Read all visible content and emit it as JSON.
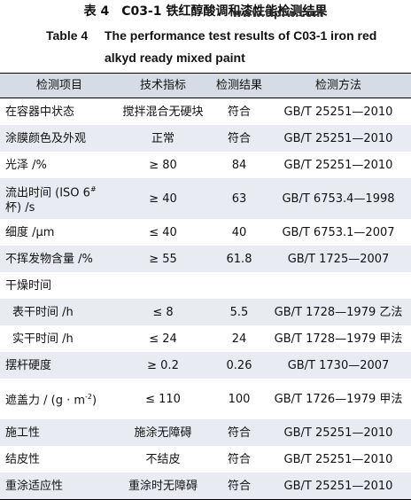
{
  "header": {
    "title_cn": "表 4　C03-1 铁红醇酸调和漆性能检测结果",
    "watermark": "www.tlpfw.com",
    "label_en": "Table 4",
    "title_en": "The performance test results of C03-1 iron red alkyd ready mixed paint"
  },
  "table": {
    "columns": [
      "检测项目",
      "技术指标",
      "检测结果",
      "检测方法"
    ],
    "rows": [
      [
        "在容器中状态",
        "搅拌混合无硬块",
        "符合",
        "GB/T 25251—2010"
      ],
      [
        "涂膜颜色及外观",
        "正常",
        "符合",
        "GB/T 25251—2010"
      ],
      [
        "光泽 /%",
        "≥ 80",
        "84",
        "GB/T 25251—2010"
      ],
      [
        [
          "流出时间 (ISO 6",
          "#",
          " 杯) /s"
        ],
        "≥ 40",
        "63",
        "GB/T 6753.4—1998"
      ],
      [
        "细度 /μm",
        "≤ 40",
        "40",
        "GB/T 6753.1—2007"
      ],
      [
        "不挥发物含量 /%",
        "≥ 55",
        "61.8",
        "GB/T 1725—2007"
      ],
      [
        "干燥时间"
      ],
      [
        "表干时间 /h",
        "≤ 8",
        "5.5",
        "GB/T 1728—1979 乙法"
      ],
      [
        "实干时间 /h",
        "≤ 24",
        "24",
        "GB/T 1728—1979 甲法"
      ],
      [
        "摆杆硬度",
        "≥ 0.2",
        "0.26",
        "GB/T 1730—2007"
      ],
      [
        [
          "遮盖力 / (g · m",
          "-2",
          ")"
        ],
        "≤ 110",
        "100",
        "GB/T 1726—1979 甲法"
      ],
      [
        "施工性",
        "施涂无障碍",
        "符合",
        "GB/T 25251—2010"
      ],
      [
        "结皮性",
        "不结皮",
        "符合",
        "GB/T 25251—2010"
      ],
      [
        "重涂适应性",
        "重涂时无障碍",
        "符合",
        "GB/T 25251—2010"
      ]
    ]
  }
}
